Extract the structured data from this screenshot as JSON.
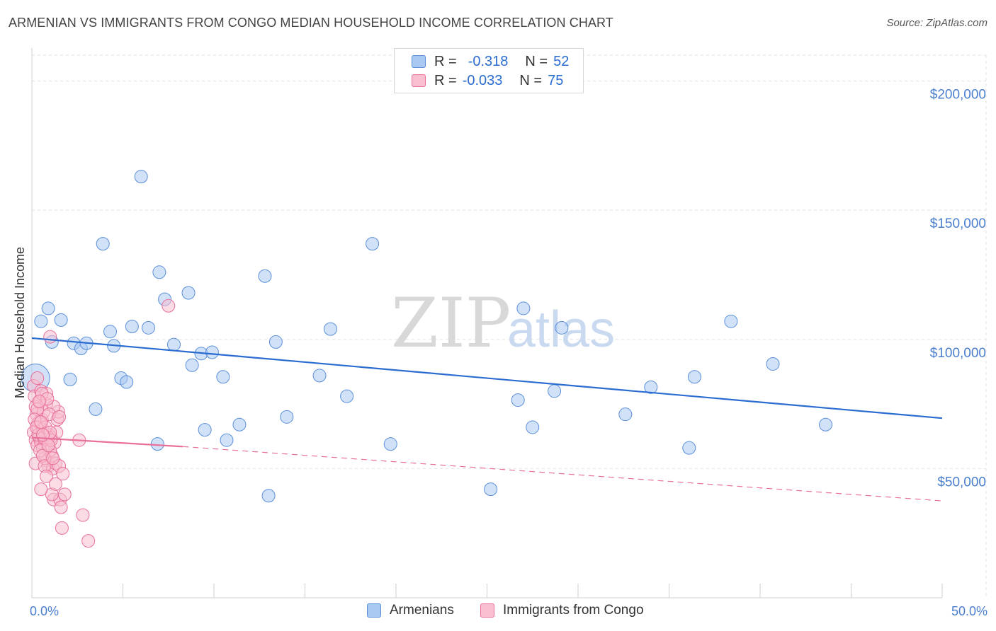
{
  "title": "ARMENIAN VS IMMIGRANTS FROM CONGO MEDIAN HOUSEHOLD INCOME CORRELATION CHART",
  "source": "Source: ZipAtlas.com",
  "watermark": {
    "zip": "ZIP",
    "atlas": "atlas"
  },
  "legend": {
    "r_label": "R =",
    "n_label": "N =",
    "series": [
      {
        "name": "Armenians",
        "r": "-0.318",
        "n": "52",
        "color": "#a9c8f2",
        "stroke": "#5b8fd9"
      },
      {
        "name": "Immigrants from Congo",
        "r": "-0.033",
        "n": "75",
        "color": "#f8bfd0",
        "stroke": "#e8709a"
      }
    ]
  },
  "chart_data": {
    "type": "scatter",
    "title": "ARMENIAN VS IMMIGRANTS FROM CONGO MEDIAN HOUSEHOLD INCOME CORRELATION CHART",
    "xlabel": "",
    "ylabel": "Median Household Income",
    "xlim": [
      0,
      50
    ],
    "ylim": [
      0,
      210000
    ],
    "x_tick_labels": [
      "0.0%",
      "50.0%"
    ],
    "y_ticks": [
      50000,
      100000,
      150000,
      200000
    ],
    "y_tick_labels": [
      "$50,000",
      "$100,000",
      "$150,000",
      "$200,000"
    ],
    "grid": true,
    "legend_position": "top-center",
    "series": [
      {
        "name": "Armenians",
        "color": "#a9c8f2",
        "stroke": "#5b8fd9",
        "points": [
          [
            0.2,
            85000
          ],
          [
            0.5,
            107000
          ],
          [
            0.9,
            112000
          ],
          [
            1.6,
            107500
          ],
          [
            1.1,
            99000
          ],
          [
            2.3,
            98500
          ],
          [
            2.7,
            96500
          ],
          [
            3.0,
            98500
          ],
          [
            2.1,
            84500
          ],
          [
            3.5,
            73000
          ],
          [
            3.9,
            137000
          ],
          [
            4.3,
            103000
          ],
          [
            4.5,
            97500
          ],
          [
            4.9,
            85000
          ],
          [
            5.2,
            83500
          ],
          [
            5.5,
            105000
          ],
          [
            6.0,
            163000
          ],
          [
            6.4,
            104500
          ],
          [
            6.9,
            59500
          ],
          [
            7.0,
            126000
          ],
          [
            7.3,
            115500
          ],
          [
            7.8,
            98000
          ],
          [
            8.6,
            118000
          ],
          [
            8.8,
            90000
          ],
          [
            9.3,
            94500
          ],
          [
            9.5,
            65000
          ],
          [
            9.9,
            95000
          ],
          [
            10.5,
            85500
          ],
          [
            10.7,
            61000
          ],
          [
            11.4,
            67000
          ],
          [
            12.8,
            124500
          ],
          [
            13.0,
            39500
          ],
          [
            13.4,
            99000
          ],
          [
            14.0,
            70000
          ],
          [
            15.8,
            86000
          ],
          [
            16.4,
            104000
          ],
          [
            17.3,
            78000
          ],
          [
            18.7,
            137000
          ],
          [
            19.7,
            59500
          ],
          [
            25.2,
            42000
          ],
          [
            26.7,
            76500
          ],
          [
            27.0,
            112000
          ],
          [
            27.5,
            66000
          ],
          [
            28.7,
            80000
          ],
          [
            29.1,
            104500
          ],
          [
            32.6,
            71000
          ],
          [
            34.0,
            81500
          ],
          [
            36.1,
            58000
          ],
          [
            36.4,
            85500
          ],
          [
            38.4,
            107000
          ],
          [
            40.7,
            90500
          ],
          [
            43.6,
            67000
          ]
        ]
      },
      {
        "name": "Immigrants from Congo",
        "color": "#f8bfd0",
        "stroke": "#e8709a",
        "points": [
          [
            0.1,
            82000
          ],
          [
            0.15,
            78000
          ],
          [
            0.2,
            74000
          ],
          [
            0.25,
            71000
          ],
          [
            0.3,
            67000
          ],
          [
            0.1,
            64000
          ],
          [
            0.2,
            61000
          ],
          [
            0.3,
            59000
          ],
          [
            0.35,
            66000
          ],
          [
            0.4,
            62000
          ],
          [
            0.45,
            76000
          ],
          [
            0.5,
            80000
          ],
          [
            0.55,
            69000
          ],
          [
            0.6,
            65000
          ],
          [
            0.65,
            72000
          ],
          [
            0.7,
            61000
          ],
          [
            0.75,
            58000
          ],
          [
            0.8,
            75000
          ],
          [
            0.85,
            53000
          ],
          [
            0.9,
            51000
          ],
          [
            0.95,
            63000
          ],
          [
            1.0,
            101000
          ],
          [
            1.05,
            62000
          ],
          [
            1.1,
            55000
          ],
          [
            1.15,
            50000
          ],
          [
            1.2,
            38000
          ],
          [
            1.25,
            60000
          ],
          [
            1.3,
            52000
          ],
          [
            1.35,
            64000
          ],
          [
            1.4,
            69000
          ],
          [
            1.45,
            72000
          ],
          [
            1.5,
            51000
          ],
          [
            1.55,
            38000
          ],
          [
            1.6,
            35000
          ],
          [
            1.65,
            27000
          ],
          [
            1.7,
            48000
          ],
          [
            1.8,
            40000
          ],
          [
            0.3,
            73000
          ],
          [
            0.4,
            68000
          ],
          [
            0.5,
            60000
          ],
          [
            0.6,
            58000
          ],
          [
            0.7,
            54000
          ],
          [
            0.8,
            79000
          ],
          [
            0.9,
            62000
          ],
          [
            1.0,
            57000
          ],
          [
            1.1,
            40000
          ],
          [
            1.2,
            74000
          ],
          [
            0.2,
            52000
          ],
          [
            0.35,
            63000
          ],
          [
            0.55,
            79000
          ],
          [
            0.65,
            62000
          ],
          [
            0.75,
            66000
          ],
          [
            0.85,
            77000
          ],
          [
            0.95,
            71000
          ],
          [
            1.05,
            61000
          ],
          [
            0.15,
            69000
          ],
          [
            0.25,
            66000
          ],
          [
            0.45,
            57000
          ],
          [
            0.5,
            42000
          ],
          [
            0.6,
            55000
          ],
          [
            0.7,
            51000
          ],
          [
            0.8,
            47000
          ],
          [
            0.9,
            59000
          ],
          [
            1.0,
            64000
          ],
          [
            1.15,
            54000
          ],
          [
            1.3,
            44000
          ],
          [
            1.5,
            70000
          ],
          [
            2.6,
            61000
          ],
          [
            2.8,
            32000
          ],
          [
            3.1,
            22000
          ],
          [
            7.5,
            113000
          ],
          [
            0.3,
            85000
          ],
          [
            0.4,
            76000
          ],
          [
            0.5,
            68000
          ],
          [
            0.6,
            63000
          ]
        ]
      }
    ],
    "trend_lines": [
      {
        "series": "Armenians",
        "x": [
          0,
          50
        ],
        "y": [
          100500,
          69500
        ],
        "style": "solid"
      },
      {
        "series": "Immigrants from Congo",
        "x": [
          0,
          8.3
        ],
        "y": [
          62000,
          58500
        ],
        "style": "solid"
      },
      {
        "series": "Immigrants from Congo",
        "x": [
          8.3,
          50
        ],
        "y": [
          58500,
          37500
        ],
        "style": "dashed"
      }
    ]
  }
}
